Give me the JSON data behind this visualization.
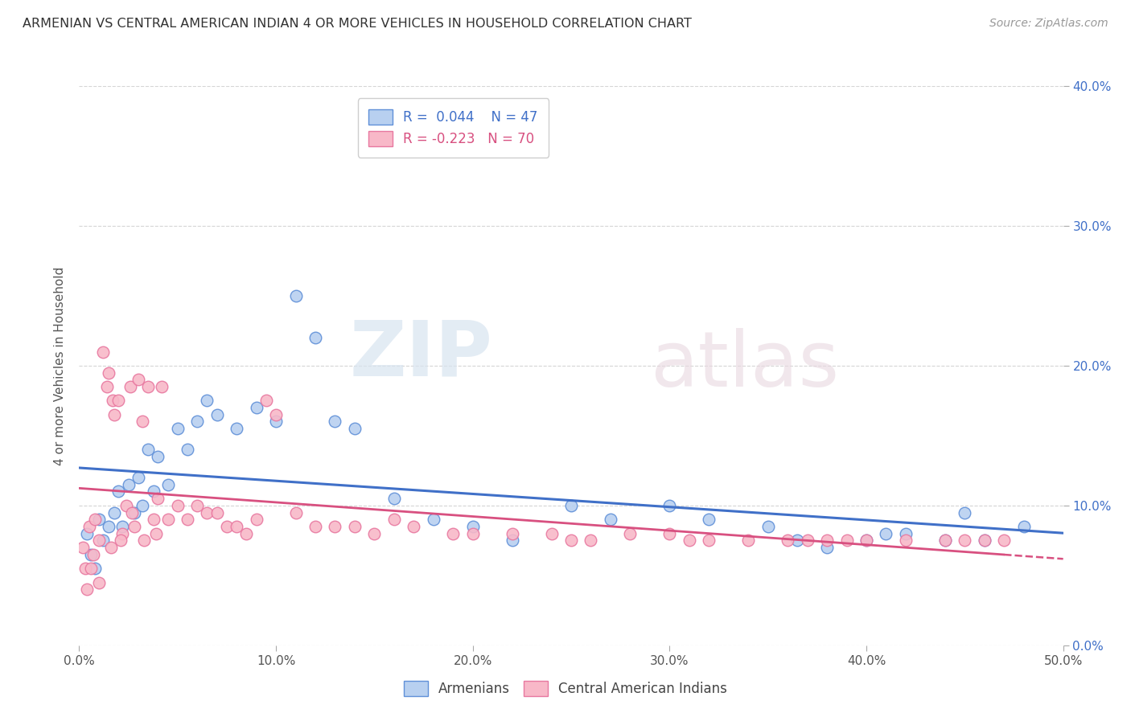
{
  "title": "ARMENIAN VS CENTRAL AMERICAN INDIAN 4 OR MORE VEHICLES IN HOUSEHOLD CORRELATION CHART",
  "source": "Source: ZipAtlas.com",
  "ylabel": "4 or more Vehicles in Household",
  "legend_label_blue": "Armenians",
  "legend_label_pink": "Central American Indians",
  "r_blue": "0.044",
  "n_blue": "47",
  "r_pink": "-0.223",
  "n_pink": "70",
  "color_blue_fill": "#b8d0f0",
  "color_pink_fill": "#f8b8c8",
  "color_blue_edge": "#6090d8",
  "color_pink_edge": "#e878a0",
  "color_blue_line": "#4070c8",
  "color_pink_line": "#d85080",
  "xlim": [
    0.0,
    50.0
  ],
  "ylim": [
    0.0,
    40.0
  ],
  "xticks": [
    0.0,
    10.0,
    20.0,
    30.0,
    40.0,
    50.0
  ],
  "yticks": [
    0.0,
    10.0,
    20.0,
    30.0,
    40.0
  ],
  "watermark_zip": "ZIP",
  "watermark_atlas": "atlas",
  "background_color": "#ffffff",
  "grid_color": "#d5d5d5",
  "blue_x": [
    0.4,
    0.6,
    0.8,
    1.0,
    1.2,
    1.5,
    1.8,
    2.0,
    2.2,
    2.5,
    2.8,
    3.0,
    3.5,
    4.0,
    4.5,
    5.0,
    6.0,
    7.0,
    8.0,
    9.0,
    10.0,
    11.0,
    12.0,
    13.0,
    14.0,
    16.0,
    18.0,
    20.0,
    22.0,
    25.0,
    27.0,
    30.0,
    32.0,
    35.0,
    36.5,
    38.0,
    40.0,
    41.0,
    42.0,
    44.0,
    45.0,
    46.0,
    48.0,
    3.2,
    3.8,
    5.5,
    6.5
  ],
  "blue_y": [
    8.0,
    6.5,
    5.5,
    9.0,
    7.5,
    8.5,
    9.5,
    11.0,
    8.5,
    11.5,
    9.5,
    12.0,
    14.0,
    13.5,
    11.5,
    15.5,
    16.0,
    16.5,
    15.5,
    17.0,
    16.0,
    25.0,
    22.0,
    16.0,
    15.5,
    10.5,
    9.0,
    8.5,
    7.5,
    10.0,
    9.0,
    10.0,
    9.0,
    8.5,
    7.5,
    7.0,
    7.5,
    8.0,
    8.0,
    7.5,
    9.5,
    7.5,
    8.5,
    10.0,
    11.0,
    14.0,
    17.5
  ],
  "pink_x": [
    0.2,
    0.3,
    0.5,
    0.7,
    0.8,
    1.0,
    1.2,
    1.4,
    1.5,
    1.7,
    1.8,
    2.0,
    2.2,
    2.4,
    2.6,
    2.8,
    3.0,
    3.2,
    3.5,
    3.8,
    4.0,
    4.2,
    4.5,
    5.0,
    5.5,
    6.0,
    6.5,
    7.0,
    7.5,
    8.0,
    8.5,
    9.0,
    9.5,
    10.0,
    11.0,
    12.0,
    13.0,
    14.0,
    15.0,
    16.0,
    17.0,
    19.0,
    20.0,
    22.0,
    24.0,
    25.0,
    26.0,
    28.0,
    30.0,
    31.0,
    32.0,
    34.0,
    36.0,
    37.0,
    38.0,
    39.0,
    40.0,
    42.0,
    44.0,
    45.0,
    46.0,
    47.0,
    0.4,
    0.6,
    1.0,
    1.6,
    2.1,
    2.7,
    3.3,
    3.9
  ],
  "pink_y": [
    7.0,
    5.5,
    8.5,
    6.5,
    9.0,
    7.5,
    21.0,
    18.5,
    19.5,
    17.5,
    16.5,
    17.5,
    8.0,
    10.0,
    18.5,
    8.5,
    19.0,
    16.0,
    18.5,
    9.0,
    10.5,
    18.5,
    9.0,
    10.0,
    9.0,
    10.0,
    9.5,
    9.5,
    8.5,
    8.5,
    8.0,
    9.0,
    17.5,
    16.5,
    9.5,
    8.5,
    8.5,
    8.5,
    8.0,
    9.0,
    8.5,
    8.0,
    8.0,
    8.0,
    8.0,
    7.5,
    7.5,
    8.0,
    8.0,
    7.5,
    7.5,
    7.5,
    7.5,
    7.5,
    7.5,
    7.5,
    7.5,
    7.5,
    7.5,
    7.5,
    7.5,
    7.5,
    4.0,
    5.5,
    4.5,
    7.0,
    7.5,
    9.5,
    7.5,
    8.0
  ]
}
